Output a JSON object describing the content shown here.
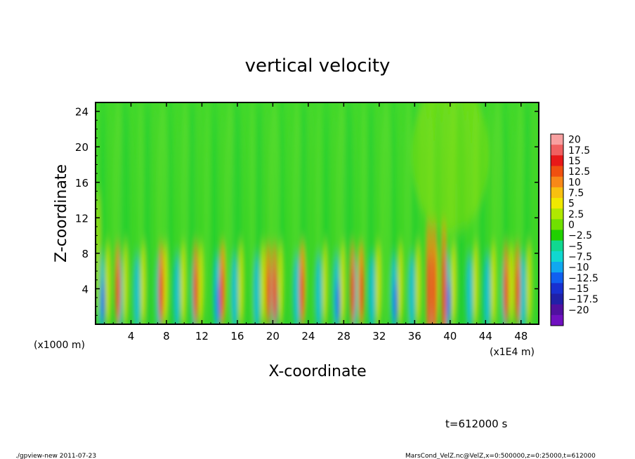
{
  "chart_data": {
    "type": "heatmap",
    "title": "vertical velocity",
    "xlabel": "X-coordinate",
    "ylabel": "Z-coordinate",
    "x_unit_left": "(x1000 m)",
    "x_unit_right": "(x1E4 m)",
    "xlim": [
      0,
      50
    ],
    "ylim": [
      0,
      25
    ],
    "x_ticks": [
      "4",
      "8",
      "12",
      "16",
      "20",
      "24",
      "28",
      "32",
      "36",
      "40",
      "44",
      "48"
    ],
    "y_ticks": [
      "4",
      "8",
      "12",
      "16",
      "20",
      "24"
    ],
    "colorbar": {
      "levels": [
        "20",
        "17.5",
        "15",
        "12.5",
        "10",
        "7.5",
        "5",
        "2.5",
        "0",
        "−2.5",
        "−5",
        "−7.5",
        "−10",
        "−12.5",
        "−15",
        "−17.5",
        "−20"
      ],
      "colors": [
        "#f8a0a0",
        "#f06060",
        "#e81818",
        "#f05010",
        "#f88818",
        "#f8c010",
        "#f0e800",
        "#b0e800",
        "#70e000",
        "#20d000",
        "#10d890",
        "#10d8d0",
        "#10a8f0",
        "#1060f0",
        "#1830d0",
        "#2020a8",
        "#5010a0",
        "#7010c0"
      ]
    },
    "plumes_x": [
      1,
      3,
      5,
      7.5,
      9.5,
      11.5,
      14,
      16,
      18.5,
      20.5,
      23,
      25.5,
      27.5,
      29.5,
      31.5,
      34,
      36,
      38,
      40,
      42.5,
      44.5,
      46.5,
      48.5
    ],
    "updrafts_x": [
      2.5,
      7.4,
      11.3,
      14.3,
      19.5,
      20.2,
      23.3,
      29,
      30,
      37.6,
      38.2,
      39.3,
      46.3,
      47.6
    ]
  },
  "annotations": {
    "time": "t=612000 s",
    "footer_left": "./gpview-new   2011-07-23",
    "footer_right": "MarsCond_VelZ.nc@VelZ,x=0:500000,z=0:25000,t=612000"
  }
}
